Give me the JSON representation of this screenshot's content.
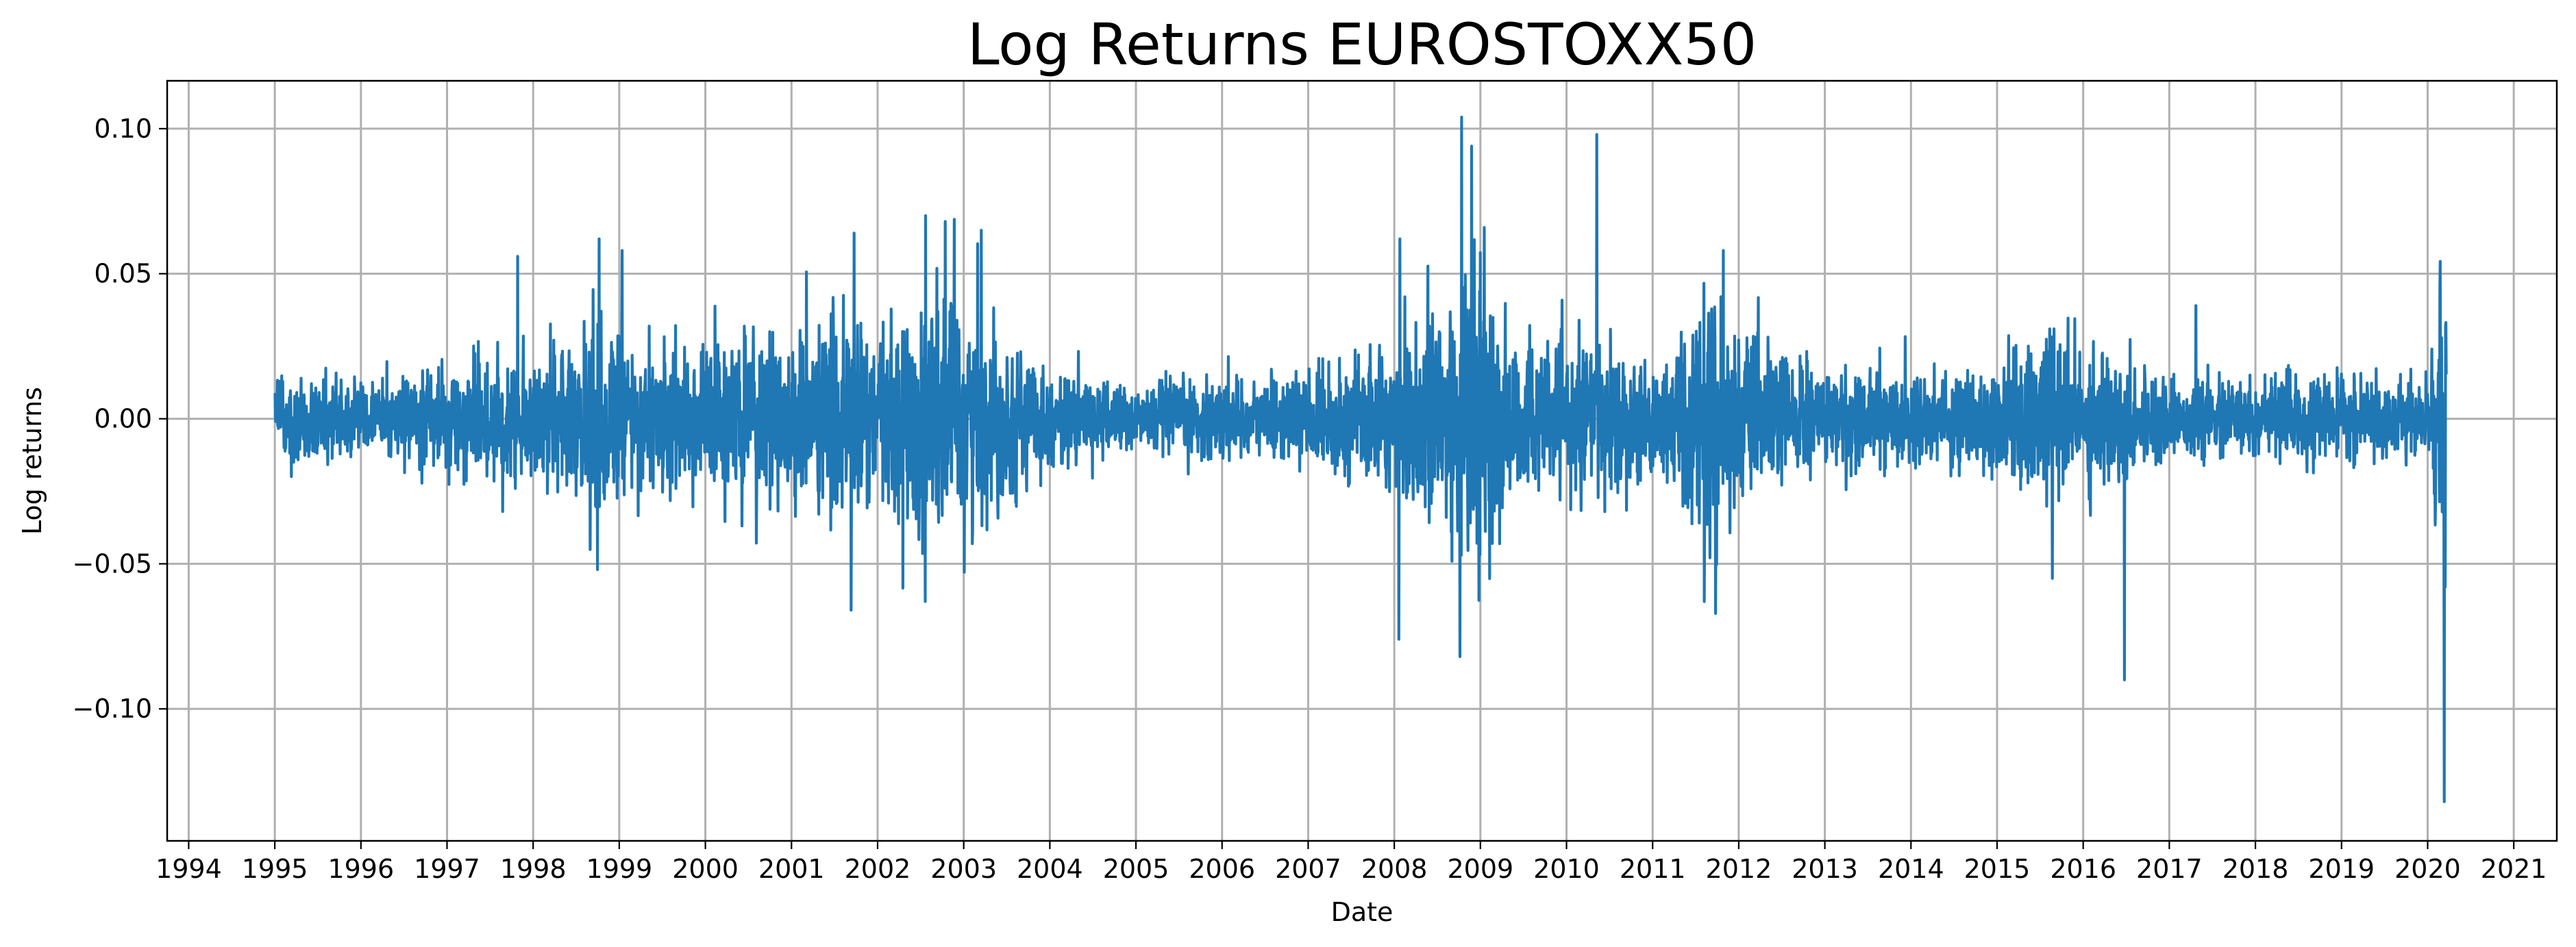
{
  "chart_data": {
    "type": "line",
    "title": "Log Returns EUROSTOXX50",
    "xlabel": "Date",
    "ylabel": "Log returns",
    "xlim": [
      1993.75,
      2021.5
    ],
    "ylim": [
      -0.1455,
      0.1165
    ],
    "grid": true,
    "x_ticks": [
      "1994",
      "1995",
      "1996",
      "1997",
      "1998",
      "1999",
      "2000",
      "2001",
      "2002",
      "2003",
      "2004",
      "2005",
      "2006",
      "2007",
      "2008",
      "2009",
      "2010",
      "2011",
      "2012",
      "2013",
      "2014",
      "2015",
      "2016",
      "2017",
      "2018",
      "2019",
      "2020",
      "2021"
    ],
    "y_ticks": [
      {
        "value": 0.1,
        "label": "0.10"
      },
      {
        "value": 0.05,
        "label": "0.05"
      },
      {
        "value": 0.0,
        "label": "0.00"
      },
      {
        "value": -0.05,
        "label": "−0.05"
      },
      {
        "value": -0.1,
        "label": "−0.10"
      }
    ],
    "series": [
      {
        "color": "#1f77b4",
        "x_start": "1995-01-02",
        "x_end": "2020-03-20",
        "volatility_envelope": [
          {
            "x": 1995.0,
            "v": 0.012
          },
          {
            "x": 1996.0,
            "v": 0.009
          },
          {
            "x": 1997.0,
            "v": 0.013
          },
          {
            "x": 1997.8,
            "v": 0.019
          },
          {
            "x": 1998.3,
            "v": 0.018
          },
          {
            "x": 1998.75,
            "v": 0.032
          },
          {
            "x": 1999.2,
            "v": 0.018
          },
          {
            "x": 2000.0,
            "v": 0.022
          },
          {
            "x": 2001.0,
            "v": 0.021
          },
          {
            "x": 2001.7,
            "v": 0.03
          },
          {
            "x": 2002.0,
            "v": 0.02
          },
          {
            "x": 2002.6,
            "v": 0.037
          },
          {
            "x": 2003.0,
            "v": 0.033
          },
          {
            "x": 2003.5,
            "v": 0.021
          },
          {
            "x": 2004.0,
            "v": 0.012
          },
          {
            "x": 2005.0,
            "v": 0.009
          },
          {
            "x": 2006.0,
            "v": 0.011
          },
          {
            "x": 2007.0,
            "v": 0.011
          },
          {
            "x": 2007.6,
            "v": 0.015
          },
          {
            "x": 2008.0,
            "v": 0.023
          },
          {
            "x": 2008.8,
            "v": 0.045
          },
          {
            "x": 2009.2,
            "v": 0.03
          },
          {
            "x": 2009.8,
            "v": 0.016
          },
          {
            "x": 2010.4,
            "v": 0.021
          },
          {
            "x": 2011.0,
            "v": 0.015
          },
          {
            "x": 2011.7,
            "v": 0.033
          },
          {
            "x": 2012.0,
            "v": 0.022
          },
          {
            "x": 2012.7,
            "v": 0.017
          },
          {
            "x": 2013.0,
            "v": 0.013
          },
          {
            "x": 2014.0,
            "v": 0.012
          },
          {
            "x": 2015.0,
            "v": 0.015
          },
          {
            "x": 2015.6,
            "v": 0.022
          },
          {
            "x": 2016.0,
            "v": 0.02
          },
          {
            "x": 2016.5,
            "v": 0.016
          },
          {
            "x": 2017.0,
            "v": 0.009
          },
          {
            "x": 2018.0,
            "v": 0.011
          },
          {
            "x": 2019.0,
            "v": 0.01
          },
          {
            "x": 2020.0,
            "v": 0.01
          },
          {
            "x": 2020.2,
            "v": 0.05
          }
        ],
        "notable_points": [
          {
            "date": "1997-10-27",
            "y": -0.056
          },
          {
            "date": "1997-10-28",
            "y": 0.056
          },
          {
            "date": "1998-10-08",
            "y": 0.062
          },
          {
            "date": "1998-10-01",
            "y": -0.052
          },
          {
            "date": "1999-01-13",
            "y": 0.058
          },
          {
            "date": "2001-09-11",
            "y": -0.066
          },
          {
            "date": "2001-09-24",
            "y": 0.064
          },
          {
            "date": "2002-07-24",
            "y": 0.07
          },
          {
            "date": "2002-07-22",
            "y": -0.063
          },
          {
            "date": "2002-10-15",
            "y": 0.068
          },
          {
            "date": "2003-03-17",
            "y": 0.065
          },
          {
            "date": "2008-01-21",
            "y": -0.076
          },
          {
            "date": "2008-01-24",
            "y": 0.062
          },
          {
            "date": "2008-10-06",
            "y": -0.082
          },
          {
            "date": "2008-10-13",
            "y": 0.104
          },
          {
            "date": "2008-11-24",
            "y": 0.094
          },
          {
            "date": "2010-05-10",
            "y": 0.098
          },
          {
            "date": "2011-08-08",
            "y": -0.063
          },
          {
            "date": "2011-10-27",
            "y": 0.058
          },
          {
            "date": "2015-08-24",
            "y": -0.055
          },
          {
            "date": "2016-06-24",
            "y": -0.09
          },
          {
            "date": "2017-04-24",
            "y": 0.039
          },
          {
            "date": "2020-03-12",
            "y": -0.132
          },
          {
            "date": "2020-03-16",
            "y": -0.058
          },
          {
            "date": "2020-03-17",
            "y": 0.032
          }
        ]
      }
    ]
  }
}
